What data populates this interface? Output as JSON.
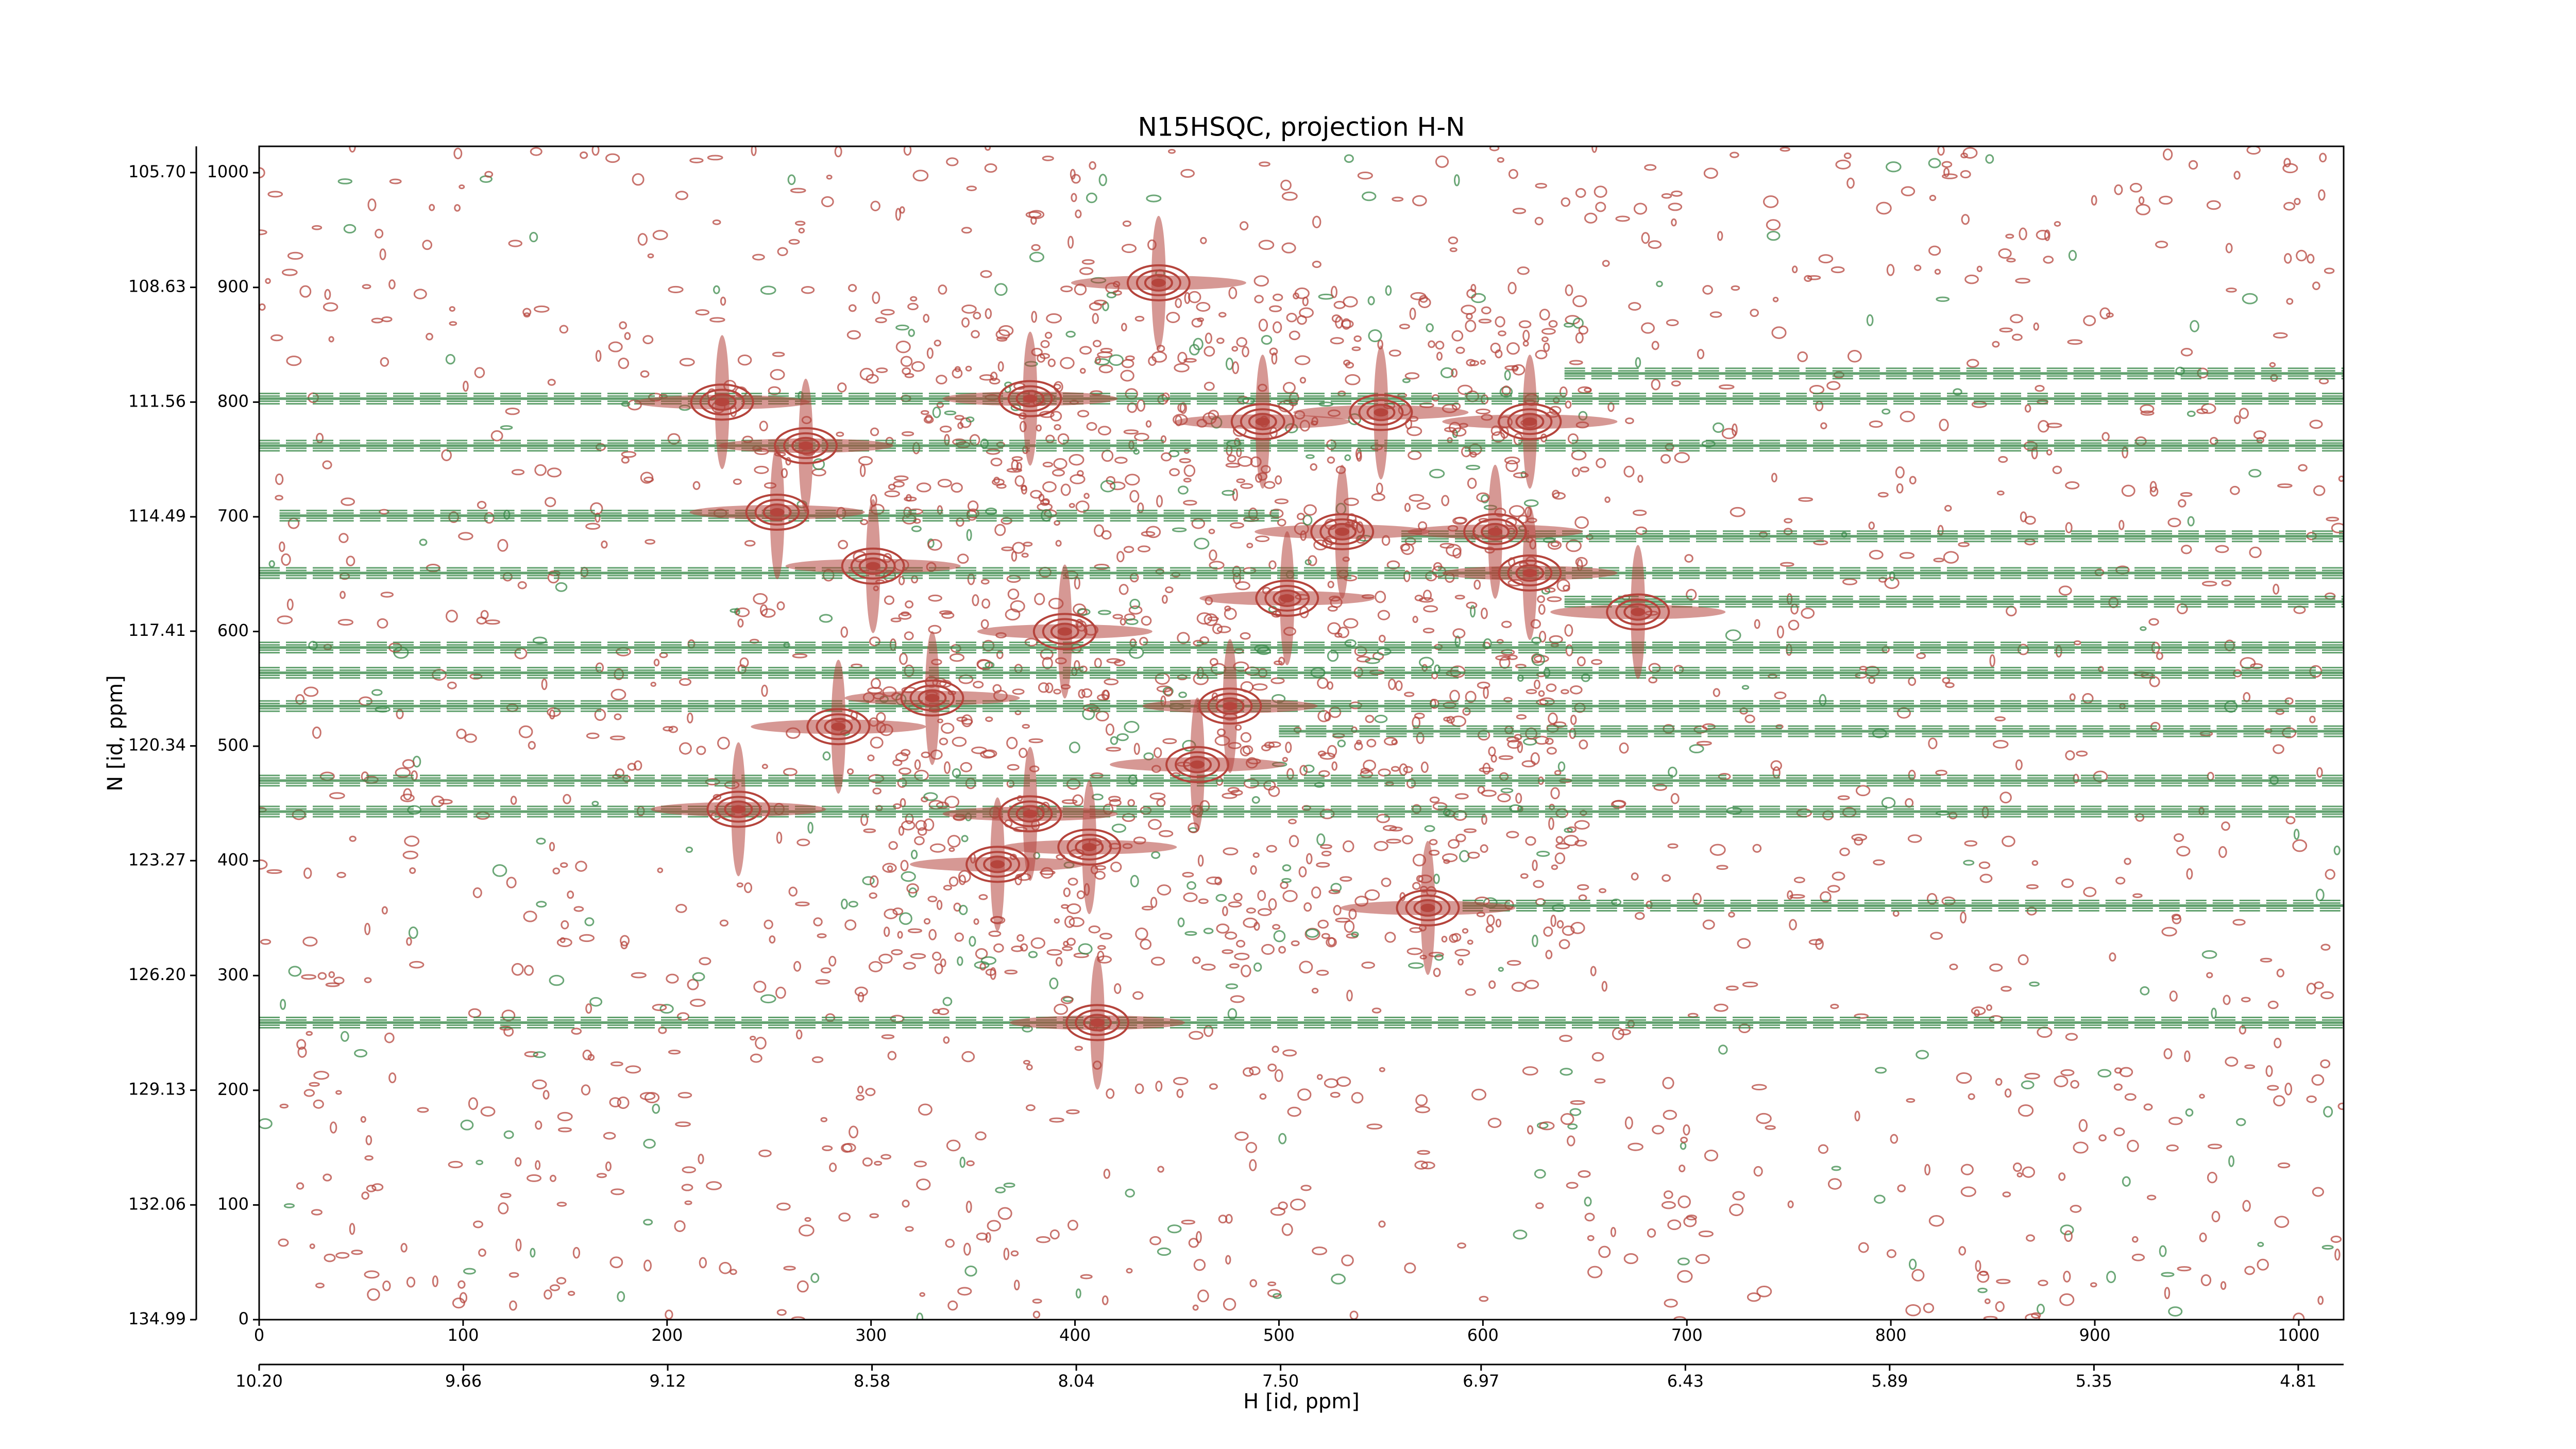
{
  "chart_data": {
    "type": "contour",
    "title": "N15HSQC, projection H-N",
    "xlabel": "H [id, ppm]",
    "ylabel": "N [id, ppm]",
    "xlim": [
      0,
      1022
    ],
    "xticks": [
      0,
      100,
      200,
      300,
      400,
      500,
      600,
      700,
      800,
      900,
      1000
    ],
    "ylim": [
      0,
      1023
    ],
    "yticks": [
      0,
      100,
      200,
      300,
      400,
      500,
      600,
      700,
      800,
      900,
      1000
    ],
    "x2lim": [
      10.2,
      4.69
    ],
    "x2ticks": [
      {
        "value": 10.2,
        "label": "10.20"
      },
      9.66,
      9.12,
      8.58,
      8.04,
      {
        "value": 7.5,
        "label": "7.50"
      },
      6.97,
      6.43,
      5.89,
      5.35,
      4.81
    ],
    "y2lim": [
      134.99,
      105.03
    ],
    "y2ticks": [
      {
        "value": 105.7,
        "label": "105.70"
      },
      108.63,
      111.56,
      114.49,
      117.41,
      120.34,
      123.27,
      {
        "value": 126.2,
        "label": "126.20"
      },
      129.13,
      132.06,
      134.99
    ],
    "peaks": {
      "color": "#b5443c",
      "x": [
        227,
        268,
        254,
        441,
        378,
        301,
        284,
        235,
        411,
        573,
        531,
        606,
        623,
        676,
        504,
        476,
        460,
        362,
        407,
        378,
        330,
        395,
        623,
        550,
        492
      ],
      "y": [
        800,
        762,
        704,
        904,
        803,
        657,
        517,
        445,
        259,
        359,
        687,
        687,
        651,
        617,
        629,
        535,
        484,
        397,
        412,
        441,
        542,
        600,
        783,
        791,
        783
      ]
    },
    "streaks": {
      "color": "#3a8a4a",
      "y": [
        825,
        803,
        762,
        701,
        683,
        651,
        626,
        586,
        564,
        535,
        513,
        470,
        443,
        361,
        259
      ],
      "x_start": [
        640,
        0,
        0,
        10,
        560,
        0,
        640,
        0,
        0,
        0,
        500,
        0,
        0,
        590,
        0
      ],
      "x_end": [
        1022,
        1022,
        1022,
        500,
        1022,
        1022,
        1022,
        1022,
        1022,
        1022,
        1022,
        1022,
        1022,
        1022,
        1022
      ]
    }
  }
}
